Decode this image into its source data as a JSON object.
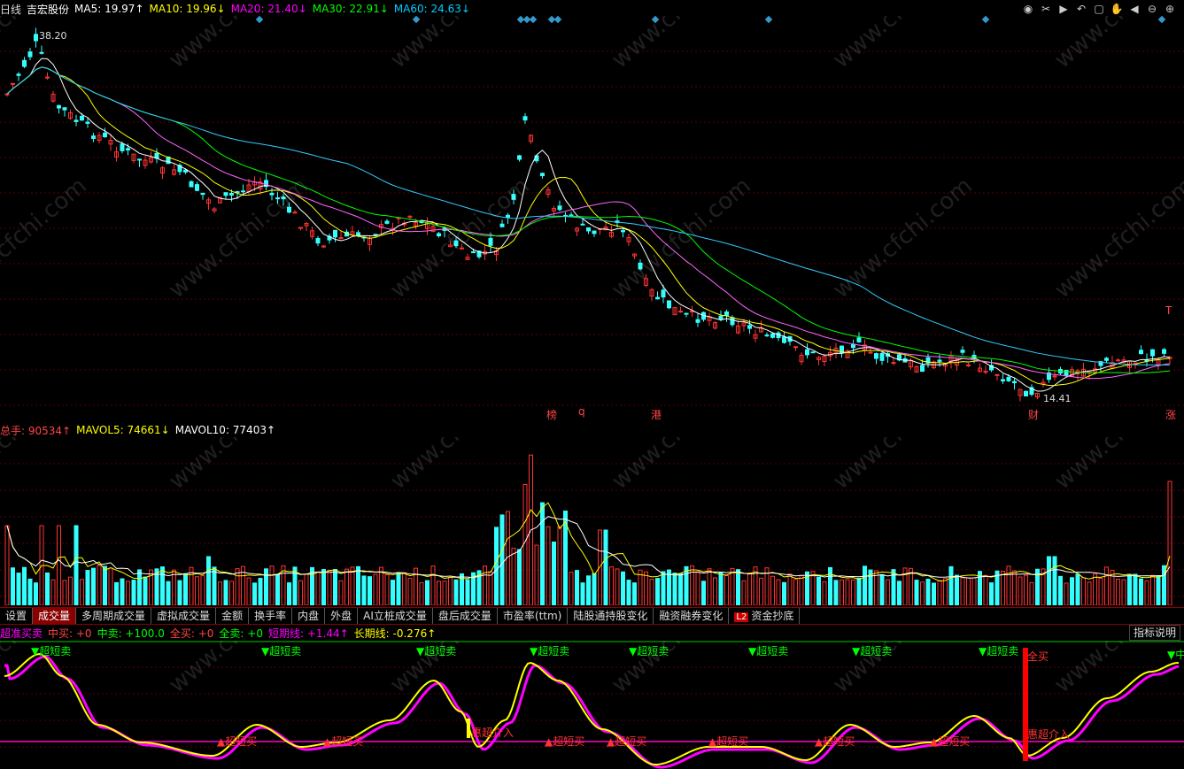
{
  "header": {
    "period": "日线",
    "stock_name": "吉宏股份",
    "ma": [
      {
        "label": "MA5: 19.97↑",
        "color": "#ffffff"
      },
      {
        "label": "MA10: 19.96↓",
        "color": "#ffff00"
      },
      {
        "label": "MA20: 21.40↓",
        "color": "#ff00ff"
      },
      {
        "label": "MA30: 22.91↓",
        "color": "#00ff00"
      },
      {
        "label": "MA60: 24.63↓",
        "color": "#00ccff"
      }
    ]
  },
  "price_chart": {
    "high_label": "38.20",
    "low_label": "14.41",
    "event_markers": [
      "榜",
      "q",
      "港",
      "财",
      "涨"
    ],
    "top_right_mark": "T"
  },
  "volume_header": {
    "items": [
      {
        "label": "总手: 90534↑",
        "color": "#ff4444"
      },
      {
        "label": "MAVOL5: 74661↓",
        "color": "#ffff00"
      },
      {
        "label": "MAVOL10: 77403↑",
        "color": "#ffffff"
      }
    ]
  },
  "tabs": [
    "设置",
    "成交量",
    "多周期成交量",
    "虚拟成交量",
    "金额",
    "换手率",
    "内盘",
    "外盘",
    "AI立桩成交量",
    "盘后成交量",
    "市盈率(ttm)",
    "陆股通持股变化",
    "融资融券变化",
    "资金抄底"
  ],
  "tabs_badge": "L2",
  "indicator_header": {
    "items": [
      {
        "label": "超准买卖",
        "color": "#ff00ff"
      },
      {
        "label": "中买: +0",
        "color": "#ff4444"
      },
      {
        "label": "中卖: +100.0",
        "color": "#00ff00"
      },
      {
        "label": "全买: +0",
        "color": "#ff4444"
      },
      {
        "label": "全卖: +0",
        "color": "#00ff00"
      },
      {
        "label": "短期线: +1.44↑",
        "color": "#ff00ff"
      },
      {
        "label": "长期线: -0.276↑",
        "color": "#ffff00"
      }
    ],
    "help_label": "指标说明"
  },
  "indicator_labels": {
    "sell": "超短卖",
    "buy": "超短买",
    "full_buy": "全买",
    "entry": "惠超介入",
    "mid_sell": "中卖"
  },
  "watermark": "www.cfchi.com"
}
